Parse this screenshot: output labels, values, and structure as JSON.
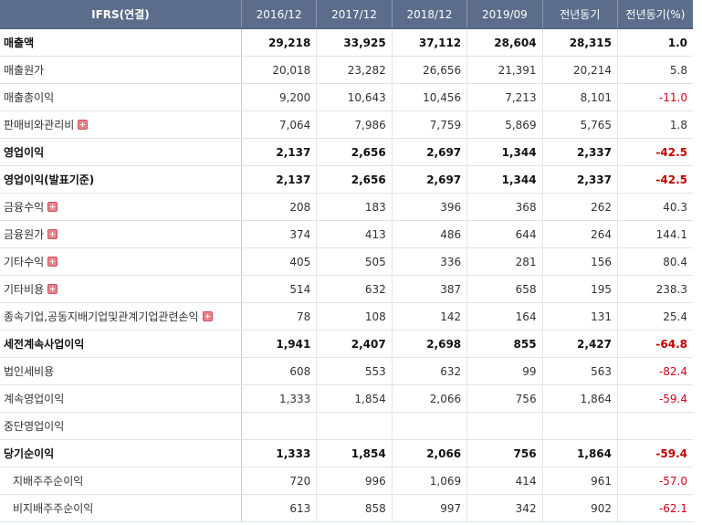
{
  "header": {
    "label": "IFRS(연결)",
    "columns": [
      "2016/12",
      "2017/12",
      "2018/12",
      "2019/09",
      "전년동기",
      "전년동기(%)"
    ]
  },
  "rows": [
    {
      "label": "매출액",
      "values": [
        "29,218",
        "33,925",
        "37,112",
        "28,604",
        "28,315",
        "1.0"
      ]
    },
    {
      "label": "매출원가",
      "values": [
        "20,018",
        "23,282",
        "26,656",
        "21,391",
        "20,214",
        "5.8"
      ]
    },
    {
      "label": "매출총이익",
      "values": [
        "9,200",
        "10,643",
        "10,456",
        "7,213",
        "8,101",
        "-11.0"
      ]
    },
    {
      "label": "판매비와관리비",
      "values": [
        "7,064",
        "7,986",
        "7,759",
        "5,869",
        "5,765",
        "1.8"
      ]
    },
    {
      "label": "영업이익",
      "values": [
        "2,137",
        "2,656",
        "2,697",
        "1,344",
        "2,337",
        "-42.5"
      ]
    },
    {
      "label": "영업이익(발표기준)",
      "values": [
        "2,137",
        "2,656",
        "2,697",
        "1,344",
        "2,337",
        "-42.5"
      ]
    },
    {
      "label": "금융수익",
      "values": [
        "208",
        "183",
        "396",
        "368",
        "262",
        "40.3"
      ]
    },
    {
      "label": "금융원가",
      "values": [
        "374",
        "413",
        "486",
        "644",
        "264",
        "144.1"
      ]
    },
    {
      "label": "기타수익",
      "values": [
        "405",
        "505",
        "336",
        "281",
        "156",
        "80.4"
      ]
    },
    {
      "label": "기타비용",
      "values": [
        "514",
        "632",
        "387",
        "658",
        "195",
        "238.3"
      ]
    },
    {
      "label": "종속기업,공동지배기업및관계기업관련손익",
      "values": [
        "78",
        "108",
        "142",
        "164",
        "131",
        "25.4"
      ]
    },
    {
      "label": "세전계속사업이익",
      "values": [
        "1,941",
        "2,407",
        "2,698",
        "855",
        "2,427",
        "-64.8"
      ]
    },
    {
      "label": "법인세비용",
      "values": [
        "608",
        "553",
        "632",
        "99",
        "563",
        "-82.4"
      ]
    },
    {
      "label": "계속영업이익",
      "values": [
        "1,333",
        "1,854",
        "2,066",
        "756",
        "1,864",
        "-59.4"
      ]
    },
    {
      "label": "중단영업이익",
      "values": [
        "",
        "",
        "",
        "",
        "",
        ""
      ]
    },
    {
      "label": "당기순이익",
      "values": [
        "1,333",
        "1,854",
        "2,066",
        "756",
        "1,864",
        "-59.4"
      ]
    },
    {
      "label": "지배주주순이익",
      "values": [
        "720",
        "996",
        "1,069",
        "414",
        "961",
        "-57.0"
      ]
    },
    {
      "label": "비지배주주순이익",
      "values": [
        "613",
        "858",
        "997",
        "342",
        "902",
        "-62.1"
      ]
    }
  ]
}
